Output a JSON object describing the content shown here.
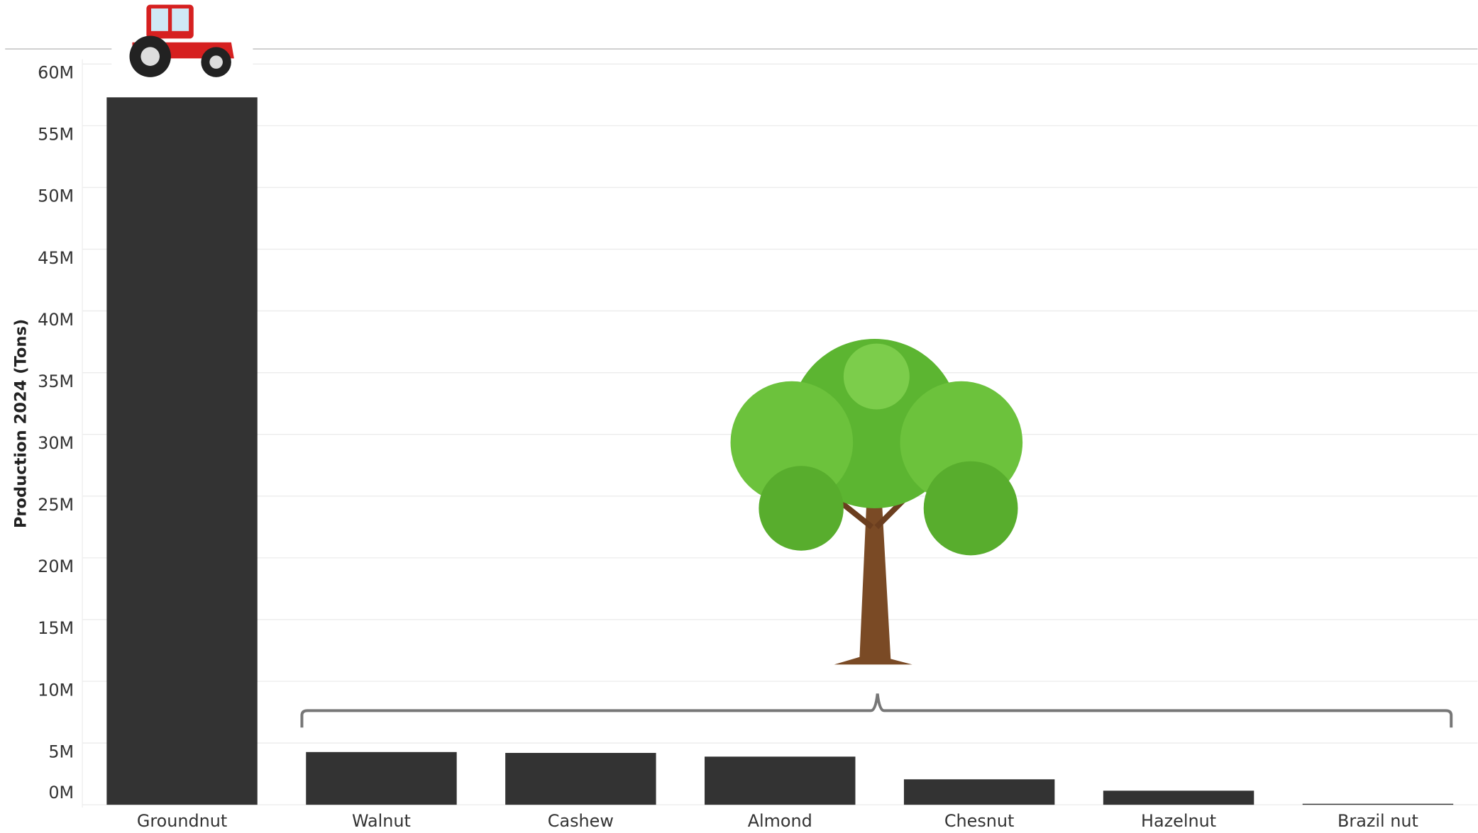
{
  "chart_data": {
    "type": "bar",
    "y_label": "Production 2024 (Tons)",
    "categories": [
      "Groundnut",
      "Walnut",
      "Cashew",
      "Almond",
      "Chesnut",
      "Hazelnut",
      "Brazil nut"
    ],
    "values": [
      57300000,
      4270000,
      4200000,
      3900000,
      2060000,
      1140000,
      80000
    ],
    "color": "#333333",
    "ylim": [
      0,
      60000000
    ],
    "yticks": [
      {
        "value": 0,
        "label": "0M"
      },
      {
        "value": 5000000,
        "label": "5M"
      },
      {
        "value": 10000000,
        "label": "10M"
      },
      {
        "value": 15000000,
        "label": "15M"
      },
      {
        "value": 20000000,
        "label": "20M"
      },
      {
        "value": 25000000,
        "label": "25M"
      },
      {
        "value": 30000000,
        "label": "30M"
      },
      {
        "value": 35000000,
        "label": "35M"
      },
      {
        "value": 40000000,
        "label": "40M"
      },
      {
        "value": 45000000,
        "label": "45M"
      },
      {
        "value": 50000000,
        "label": "50M"
      },
      {
        "value": 55000000,
        "label": "55M"
      },
      {
        "value": 60000000,
        "label": "60M"
      }
    ],
    "grid": true
  }
}
